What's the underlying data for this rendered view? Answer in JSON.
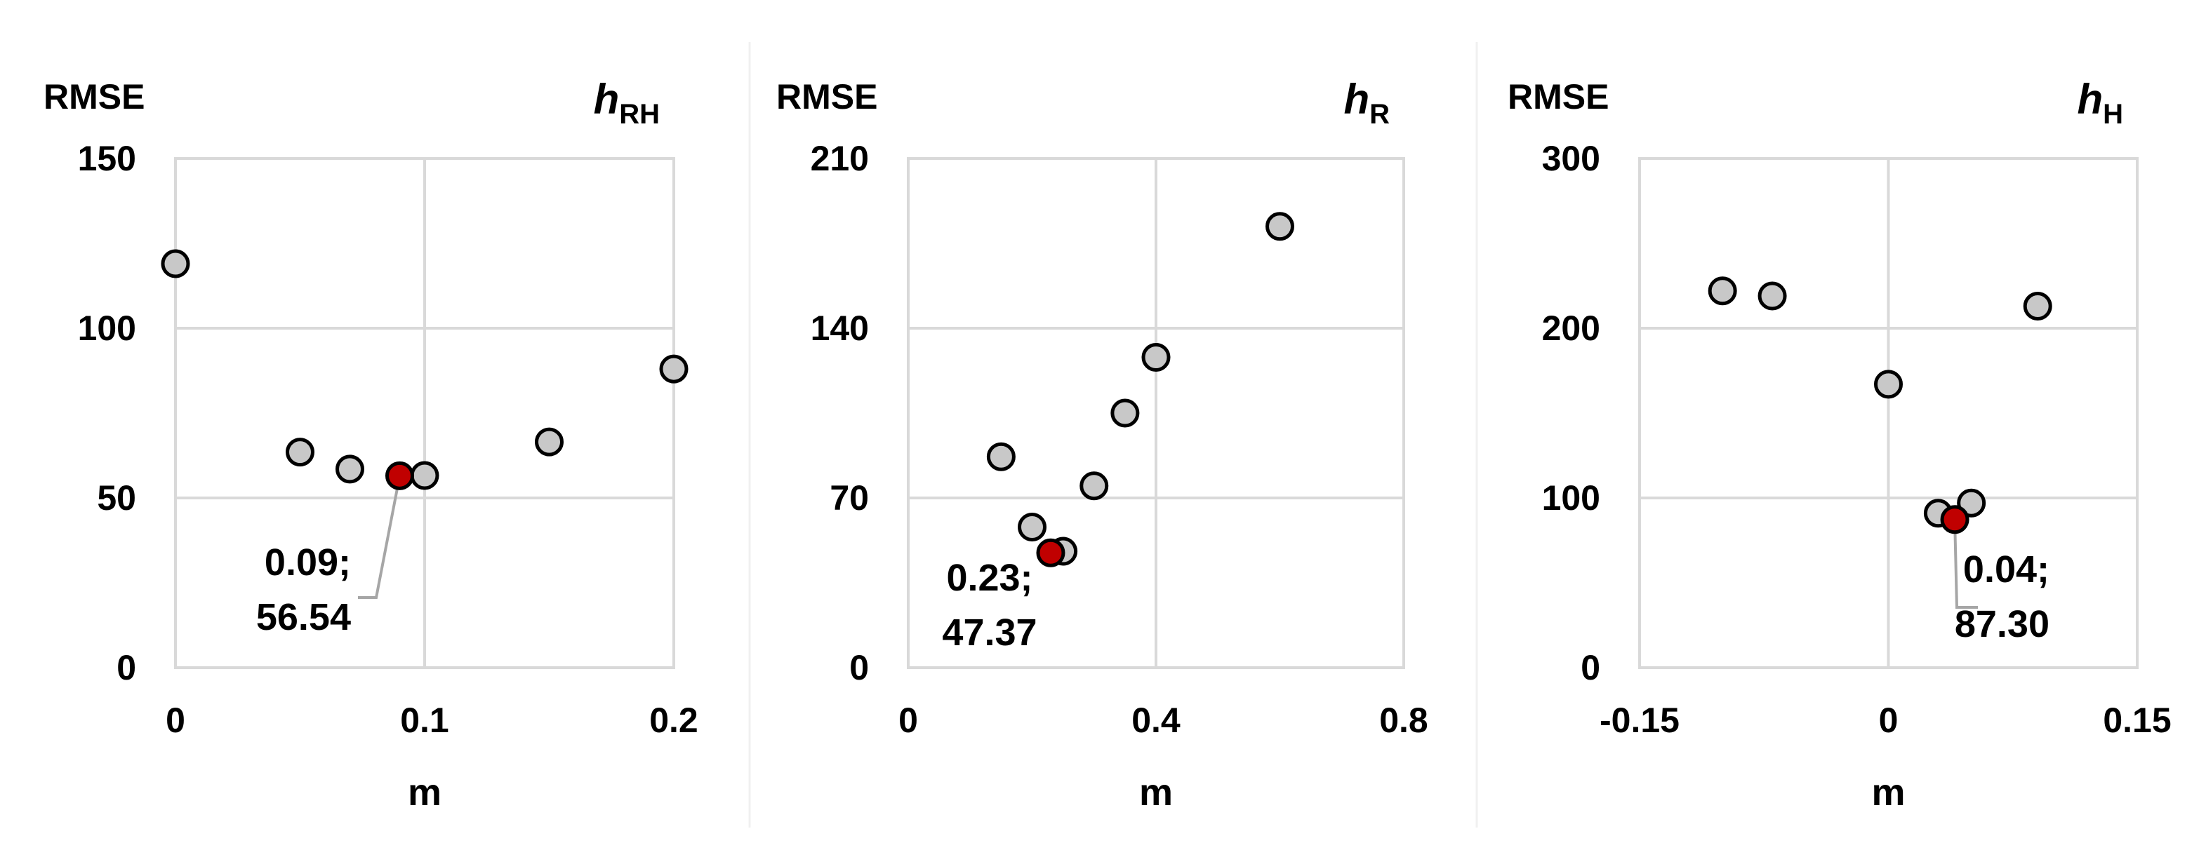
{
  "chart_data": [
    {
      "type": "scatter",
      "title_main": "h",
      "title_sub": "RH",
      "ylabel": "RMSE",
      "xlabel": "m",
      "xlim": [
        0,
        0.2
      ],
      "ylim": [
        0,
        150
      ],
      "xticks": [
        "0",
        "0.1",
        "0.2"
      ],
      "yticks": [
        "0",
        "50",
        "100",
        "150"
      ],
      "xtick_values": [
        0,
        0.1,
        0.2
      ],
      "ytick_values": [
        0,
        50,
        100,
        150
      ],
      "grid": true,
      "points": [
        {
          "x": 0.0,
          "y": 119
        },
        {
          "x": 0.05,
          "y": 63.5
        },
        {
          "x": 0.07,
          "y": 58.5
        },
        {
          "x": 0.1,
          "y": 56.6
        },
        {
          "x": 0.15,
          "y": 66.5
        },
        {
          "x": 0.2,
          "y": 88
        }
      ],
      "highlight": {
        "x": 0.09,
        "y": 56.54,
        "label_line1": "0.09;",
        "label_line2": "56.54"
      },
      "colors": {
        "point": "#c8c8c8",
        "highlight": "#c00000",
        "outline": "#000000"
      }
    },
    {
      "type": "scatter",
      "title_main": "h",
      "title_sub": "R",
      "ylabel": "RMSE",
      "xlabel": "m",
      "xlim": [
        0,
        0.8
      ],
      "ylim": [
        0,
        210
      ],
      "xticks": [
        "0",
        "0.4",
        "0.8"
      ],
      "yticks": [
        "0",
        "70",
        "140",
        "210"
      ],
      "xtick_values": [
        0,
        0.4,
        0.8
      ],
      "ytick_values": [
        0,
        70,
        140,
        210
      ],
      "grid": true,
      "points": [
        {
          "x": 0.15,
          "y": 87
        },
        {
          "x": 0.2,
          "y": 58
        },
        {
          "x": 0.25,
          "y": 48
        },
        {
          "x": 0.3,
          "y": 75
        },
        {
          "x": 0.35,
          "y": 105
        },
        {
          "x": 0.4,
          "y": 128
        },
        {
          "x": 0.6,
          "y": 182
        }
      ],
      "highlight": {
        "x": 0.23,
        "y": 47.37,
        "label_line1": "0.23;",
        "label_line2": "47.37"
      },
      "colors": {
        "point": "#c8c8c8",
        "highlight": "#c00000",
        "outline": "#000000"
      }
    },
    {
      "type": "scatter",
      "title_main": "h",
      "title_sub": "H",
      "ylabel": "RMSE",
      "xlabel": "m",
      "xlim": [
        -0.15,
        0.15
      ],
      "ylim": [
        0,
        300
      ],
      "xticks": [
        "-0.15",
        "0",
        "0.15"
      ],
      "yticks": [
        "0",
        "100",
        "200",
        "300"
      ],
      "xtick_values": [
        -0.15,
        0,
        0.15
      ],
      "ytick_values": [
        0,
        100,
        200,
        300
      ],
      "grid": true,
      "points": [
        {
          "x": -0.1,
          "y": 222
        },
        {
          "x": -0.07,
          "y": 219
        },
        {
          "x": 0.0,
          "y": 167
        },
        {
          "x": 0.03,
          "y": 91
        },
        {
          "x": 0.05,
          "y": 97
        },
        {
          "x": 0.09,
          "y": 213
        }
      ],
      "highlight": {
        "x": 0.04,
        "y": 87.3,
        "label_line1": "0.04;",
        "label_line2": "87.30"
      },
      "colors": {
        "point": "#c8c8c8",
        "highlight": "#c00000",
        "outline": "#000000"
      }
    }
  ]
}
